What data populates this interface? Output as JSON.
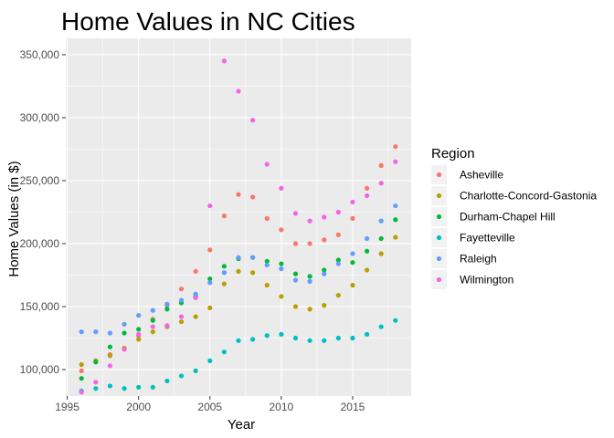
{
  "chart_data": {
    "type": "scatter",
    "title": "Home Values in NC Cities",
    "xlabel": "Year",
    "ylabel": "Home Values (in $)",
    "xlim": [
      1994.9,
      2019.1
    ],
    "ylim": [
      79000,
      363000
    ],
    "x_ticks": [
      1995,
      2000,
      2005,
      2010,
      2015
    ],
    "x_tick_labels": [
      "1995",
      "2000",
      "2005",
      "2010",
      "2015"
    ],
    "y_ticks": [
      100000,
      150000,
      200000,
      250000,
      300000,
      350000
    ],
    "y_tick_labels": [
      "100,000",
      "150,000",
      "200,000",
      "250,000",
      "300,000",
      "350,000"
    ],
    "legend": {
      "title": "Region",
      "position": "right"
    },
    "panel_background": "#ebebeb",
    "gridline_color": "#ffffff",
    "x": [
      1996,
      1997,
      1998,
      1999,
      2000,
      2001,
      2002,
      2003,
      2004,
      2005,
      2006,
      2007,
      2008,
      2009,
      2010,
      2011,
      2012,
      2013,
      2014,
      2015,
      2016,
      2017,
      2018
    ],
    "series": [
      {
        "name": "Asheville",
        "color": "#f8766d",
        "values": [
          99000,
          107000,
          112000,
          117000,
          127000,
          140000,
          151000,
          164000,
          178000,
          195000,
          222000,
          239000,
          237000,
          220000,
          211000,
          200000,
          200000,
          203000,
          207000,
          220000,
          244000,
          262000,
          277000
        ]
      },
      {
        "name": "Charlotte-Concord-Gastonia",
        "color": "#b79f00",
        "values": [
          104000,
          107000,
          111000,
          117000,
          124000,
          130000,
          134000,
          138000,
          142000,
          149000,
          168000,
          178000,
          177000,
          167000,
          158000,
          150000,
          148000,
          151000,
          159000,
          167000,
          179000,
          192000,
          205000
        ]
      },
      {
        "name": "Durham-Chapel Hill",
        "color": "#00ba38",
        "values": [
          93000,
          106000,
          118000,
          129000,
          132000,
          139000,
          148000,
          153000,
          158000,
          172000,
          182000,
          188000,
          189000,
          186000,
          184000,
          176000,
          174000,
          179000,
          187000,
          185000,
          194000,
          204000,
          219000
        ]
      },
      {
        "name": "Fayetteville",
        "color": "#00bfc4",
        "values": [
          83000,
          85000,
          87000,
          85000,
          86000,
          86000,
          91000,
          95000,
          99000,
          107000,
          114000,
          123000,
          124000,
          127000,
          128000,
          125000,
          123000,
          123000,
          125000,
          125000,
          128000,
          134000,
          139000
        ]
      },
      {
        "name": "Raleigh",
        "color": "#619cff",
        "values": [
          130000,
          130000,
          129000,
          136000,
          143000,
          147000,
          152000,
          155000,
          160000,
          169000,
          177000,
          189000,
          189000,
          183000,
          180000,
          171000,
          170000,
          176000,
          184000,
          192000,
          204000,
          218000,
          230000
        ]
      },
      {
        "name": "Wilmington",
        "color": "#f564e3",
        "values": [
          82000,
          90000,
          103000,
          116000,
          128000,
          134000,
          135000,
          142000,
          157000,
          230000,
          345000,
          321000,
          298000,
          263000,
          244000,
          224000,
          218000,
          221000,
          225000,
          233000,
          238000,
          248000,
          265000
        ]
      }
    ]
  }
}
